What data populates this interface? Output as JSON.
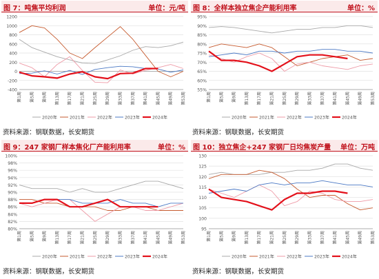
{
  "source_note": "资料来源：钢联数据，长安期货",
  "colors": {
    "2020年": "#a8a8a8",
    "2021年": "#c65a2e",
    "2022年": "#ee9aa6",
    "2023年": "#4a78c4",
    "2024年": "#e3101a"
  },
  "chart_data": [
    {
      "type": "line",
      "title": "图 7：吨焦平均利润",
      "unit": "单位：元/吨",
      "xlabel": "",
      "ylabel": "",
      "ylim": [
        -400,
        1200
      ],
      "yticks": [
        -400,
        -200,
        0,
        200,
        400,
        600,
        800,
        1000,
        1200
      ],
      "x_tick_labels": [
        "第1周",
        "第5周",
        "第9周",
        "第13周",
        "第17周",
        "第21周",
        "第25周",
        "第29周",
        "第33周",
        "第37周",
        "第41周",
        "第45周",
        "第49周",
        "第53周"
      ],
      "x": [
        1,
        5,
        9,
        13,
        17,
        21,
        25,
        29,
        33,
        37,
        41,
        45,
        49,
        53
      ],
      "grid": true,
      "legend": "bottom",
      "series": [
        {
          "name": "2020年",
          "values": [
            700,
            520,
            420,
            320,
            250,
            180,
            170,
            250,
            340,
            460,
            540,
            520,
            560,
            640
          ]
        },
        {
          "name": "2021年",
          "values": [
            850,
            1000,
            950,
            700,
            400,
            280,
            520,
            750,
            980,
            700,
            350,
            0,
            -120,
            0
          ]
        },
        {
          "name": "2022年",
          "values": [
            180,
            80,
            -120,
            150,
            320,
            20,
            -240,
            -250,
            30,
            -60,
            20,
            80,
            150,
            60
          ]
        },
        {
          "name": "2023年",
          "values": [
            -50,
            -40,
            10,
            -60,
            20,
            -70,
            40,
            80,
            110,
            100,
            60,
            50,
            -20,
            30
          ]
        },
        {
          "name": "2024年",
          "values": [
            -20,
            -100,
            -120,
            -150,
            -60,
            -10,
            -120,
            -160,
            -50,
            -40,
            60,
            60,
            null,
            null
          ]
        }
      ]
    },
    {
      "type": "line",
      "title": "图 8：全样本独立焦企产能利用率",
      "unit": "单位：%",
      "xlabel": "",
      "ylabel": "",
      "ylim": [
        55,
        95
      ],
      "yticks": [
        "55%",
        "60%",
        "65%",
        "70%",
        "75%",
        "80%",
        "85%",
        "90%",
        "95%"
      ],
      "x_tick_labels": [
        "第1周",
        "第5周",
        "第9周",
        "第13周",
        "第17周",
        "第21周",
        "第25周",
        "第29周",
        "第33周",
        "第37周",
        "第41周",
        "第45周",
        "第49周",
        "第53周"
      ],
      "x": [
        1,
        5,
        9,
        13,
        17,
        21,
        25,
        29,
        33,
        37,
        41,
        45,
        49,
        53
      ],
      "grid": true,
      "legend": "bottom",
      "series": [
        {
          "name": "2020年",
          "values": [
            89,
            89.5,
            89,
            88,
            87,
            86,
            87,
            88,
            88,
            89,
            89,
            90,
            90,
            89
          ]
        },
        {
          "name": "2021年",
          "values": [
            78,
            80,
            79,
            78,
            80,
            78,
            73,
            68,
            70,
            72,
            73,
            74,
            71,
            72
          ]
        },
        {
          "name": "2022年",
          "values": [
            74,
            72,
            70,
            73,
            75,
            72,
            65,
            69,
            70,
            68,
            67,
            66,
            68,
            69
          ]
        },
        {
          "name": "2023年",
          "values": [
            73,
            74,
            75,
            74,
            76,
            76,
            75,
            76,
            76,
            77,
            77,
            76,
            76,
            75
          ]
        },
        {
          "name": "2024年",
          "values": [
            76,
            71,
            71,
            70,
            68,
            65,
            69,
            73,
            74,
            74,
            73,
            72,
            null,
            null
          ]
        }
      ]
    },
    {
      "type": "line",
      "title": "图 9：247 家钢厂样本焦化厂产能利用率",
      "unit": "单位：%",
      "xlabel": "",
      "ylabel": "",
      "ylim": [
        80,
        100
      ],
      "yticks": [
        "80%",
        "82%",
        "84%",
        "86%",
        "88%",
        "90%",
        "92%",
        "94%",
        "96%",
        "98%",
        "100%"
      ],
      "x_tick_labels": [
        "第1周",
        "第5周",
        "第9周",
        "第13周",
        "第17周",
        "第21周",
        "第25周",
        "第29周",
        "第33周",
        "第37周",
        "第41周",
        "第45周",
        "第49周",
        "第53周"
      ],
      "x": [
        1,
        5,
        9,
        13,
        17,
        21,
        25,
        29,
        33,
        37,
        41,
        45,
        49,
        53
      ],
      "grid": true,
      "legend": "bottom",
      "series": [
        {
          "name": "2020年",
          "values": [
            92,
            91,
            91,
            91,
            90,
            91,
            90,
            90,
            91,
            92,
            93,
            93,
            92,
            91
          ]
        },
        {
          "name": "2021年",
          "values": [
            88,
            88,
            87,
            87,
            86,
            86,
            86,
            85,
            85,
            86,
            86,
            85,
            85,
            85
          ]
        },
        {
          "name": "2022年",
          "values": [
            87,
            86,
            87,
            88,
            88,
            85,
            82,
            84,
            86,
            86,
            85,
            85,
            86,
            87
          ]
        },
        {
          "name": "2023年",
          "values": [
            87,
            87,
            88,
            88,
            88,
            87,
            87,
            87,
            88,
            87,
            87,
            86,
            87,
            87
          ]
        },
        {
          "name": "2024年",
          "values": [
            87,
            87,
            88,
            88,
            86,
            86,
            87,
            88,
            86,
            86,
            86,
            86,
            null,
            null
          ]
        }
      ]
    },
    {
      "type": "line",
      "title": "图 10：独立焦企+247 家钢厂日均焦炭产量",
      "unit": "单位：万吨",
      "xlabel": "",
      "ylabel": "",
      "ylim": [
        95,
        130
      ],
      "yticks": [
        95,
        100,
        105,
        110,
        115,
        120,
        125,
        130
      ],
      "x_tick_labels": [
        "第1周",
        "第5周",
        "第9周",
        "第13周",
        "第17周",
        "第21周",
        "第25周",
        "第29周",
        "第33周",
        "第37周",
        "第41周",
        "第45周",
        "第49周",
        "第53周"
      ],
      "x": [
        1,
        5,
        9,
        13,
        17,
        21,
        25,
        29,
        33,
        37,
        41,
        45,
        49,
        53
      ],
      "grid": true,
      "legend": "bottom",
      "series": [
        {
          "name": "2020年",
          "values": [
            121,
            122,
            121,
            121,
            121,
            122,
            122,
            123,
            123,
            124,
            126,
            126,
            124,
            123
          ]
        },
        {
          "name": "2021年",
          "values": [
            119,
            121,
            121,
            121,
            123,
            122,
            119,
            114,
            110,
            111,
            111,
            107,
            104,
            105
          ]
        },
        {
          "name": "2022年",
          "values": [
            114,
            112,
            110,
            113,
            116,
            113,
            106,
            108,
            113,
            112,
            109,
            108,
            108,
            109
          ]
        },
        {
          "name": "2023年",
          "values": [
            112,
            113,
            114,
            113,
            116,
            117,
            116,
            117,
            117,
            118,
            117,
            116,
            116,
            115
          ]
        },
        {
          "name": "2024年",
          "values": [
            114,
            110,
            109,
            108,
            106,
            104,
            109,
            112,
            112,
            113,
            113,
            112,
            null,
            null
          ]
        }
      ]
    }
  ]
}
